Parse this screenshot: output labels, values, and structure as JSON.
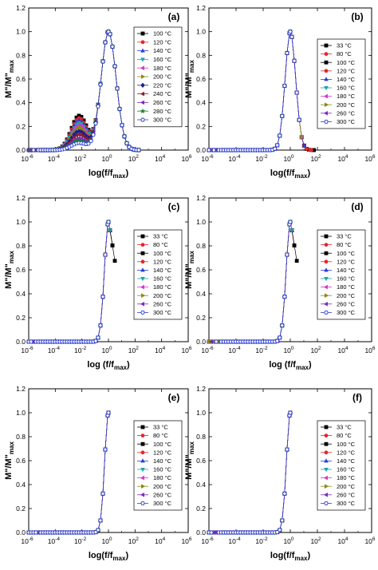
{
  "figure": {
    "panel_label_format": "({id})",
    "axis_font": "bold",
    "frame_color": "#000000"
  },
  "series_styles": {
    "100 °C": {
      "color": "#000000",
      "marker": "square"
    },
    "120 °C": {
      "color": "#e8242a",
      "marker": "circle"
    },
    "140 °C": {
      "color": "#2a3fd6",
      "marker": "triangle-up"
    },
    "160 °C": {
      "color": "#19a6a6",
      "marker": "triangle-down"
    },
    "180 °C": {
      "color": "#d636c8",
      "marker": "triangle-left"
    },
    "200 °C": {
      "color": "#8a8a12",
      "marker": "triangle-right"
    },
    "220 °C": {
      "color": "#1c1c8f",
      "marker": "diamond"
    },
    "240 °C": {
      "color": "#8b1a2b",
      "marker": "triangle-left"
    },
    "260 °C": {
      "color": "#7b2cbf",
      "marker": "triangle-left"
    },
    "280 °C": {
      "color": "#1e7f3a",
      "marker": "star"
    },
    "300 °C": {
      "color": "#2c3fd0",
      "marker": "hex-open"
    },
    "33 °C": {
      "color": "#000000",
      "marker": "square"
    },
    "80 °C": {
      "color": "#e8242a",
      "marker": "circle"
    }
  },
  "chart_data": [
    {
      "id": "a",
      "type": "scatter",
      "panel_label": "(a)",
      "xlabel": "log(f/f",
      "xlabel_sub": "max",
      "xlabel_end": ")",
      "ylabel": "M\"/M\"",
      "ylabel_sub": "max",
      "xscale": "log",
      "xlim": [
        1e-06,
        1000000.0
      ],
      "ylim": [
        0,
        1.2
      ],
      "x_ticks": [
        {
          "v": -6,
          "label": "10"
        },
        {
          "v": -4,
          "label": "10"
        },
        {
          "v": -2,
          "label": "10"
        },
        {
          "v": 0,
          "label": "10"
        },
        {
          "v": 2,
          "label": "10"
        },
        {
          "v": 4,
          "label": "10"
        },
        {
          "v": 6,
          "label": "10"
        }
      ],
      "x_tick_exps": [
        "-6",
        "-4",
        "-2",
        "0",
        "2",
        "4",
        "6"
      ],
      "y_ticks": [
        0.0,
        0.2,
        0.4,
        0.6,
        0.8,
        1.0,
        1.2
      ],
      "y_tick_labels": [
        "0.0",
        "0.2",
        "0.4",
        "0.6",
        "0.8",
        "1.0",
        "1.2"
      ],
      "legend_position": "top-right",
      "legend": [
        "100 °C",
        "120 °C",
        "140 °C",
        "160 °C",
        "180 °C",
        "200 °C",
        "220 °C",
        "240 °C",
        "260 °C",
        "280 °C",
        "300 °C"
      ],
      "peak_width": 0.55,
      "left_floor": 0,
      "right_end": 2.3,
      "shoulder": {
        "center": -2.2,
        "width": 0.6,
        "height": [
          0.29,
          0.27,
          0.25,
          0.23,
          0.21,
          0.19,
          0.16,
          0.13,
          0.1,
          0.08,
          0.06
        ]
      },
      "grid": false
    },
    {
      "id": "b",
      "type": "scatter",
      "panel_label": "(b)",
      "xlabel": "log(f/f",
      "xlabel_sub": "max",
      "xlabel_end": ")",
      "ylabel": "M\"/M\"",
      "ylabel_sub": "max",
      "xscale": "log",
      "xlim": [
        1e-06,
        1000000.0
      ],
      "ylim": [
        0,
        1.2
      ],
      "x_tick_exps": [
        "-6",
        "-4",
        "-2",
        "0",
        "2",
        "4",
        "6"
      ],
      "y_ticks": [
        0.0,
        0.2,
        0.4,
        0.6,
        0.8,
        1.0,
        1.2
      ],
      "y_tick_labels": [
        "0.0",
        "0.2",
        "0.4",
        "0.6",
        "0.8",
        "1.0",
        "1.2"
      ],
      "legend_position": "right",
      "legend": [
        "33 °C",
        "80 °C",
        "100 °C",
        "120 °C",
        "140 °C",
        "160 °C",
        "180 °C",
        "200 °C",
        "260 °C",
        "300 °C"
      ],
      "peak_width": 0.38,
      "right_ends": [
        1.9,
        1.7,
        1.3,
        1.2,
        1.1,
        1.0,
        0.9,
        0.9,
        0.8,
        0.8
      ],
      "grid": false
    },
    {
      "id": "c",
      "type": "scatter",
      "panel_label": "(c)",
      "xlabel": "log (f/f",
      "xlabel_sub": "max",
      "xlabel_end": ")",
      "ylabel": "M\"/M\"",
      "ylabel_sub": "max",
      "xscale": "log",
      "xlim": [
        1e-06,
        1000000.0
      ],
      "ylim": [
        0,
        1.2
      ],
      "x_tick_exps": [
        "-6",
        "-4",
        "-2",
        "0",
        "2",
        "4",
        "6"
      ],
      "y_ticks": [
        0.0,
        0.2,
        0.4,
        0.6,
        0.8,
        1.0,
        1.2
      ],
      "y_tick_labels": [
        "0.0",
        "0.2",
        "0.4",
        "0.6",
        "0.8",
        "1.0",
        "1.2"
      ],
      "legend_position": "right",
      "legend": [
        "33 °C",
        "80 °C",
        "100 °C",
        "120 °C",
        "140 °C",
        "160 °C",
        "180 °C",
        "200 °C",
        "260 °C",
        "300 °C"
      ],
      "peak_width": 0.3,
      "right_ends": [
        0.6,
        0.4,
        0.3,
        0.25,
        0.2,
        0.15,
        0.1,
        0.1,
        0.05,
        0.05
      ],
      "right_floor": 0.6,
      "grid": false
    },
    {
      "id": "d",
      "type": "scatter",
      "panel_label": "(d)",
      "xlabel": "log (f/f",
      "xlabel_sub": "max",
      "xlabel_end": ")",
      "ylabel": "M\"/M\"",
      "ylabel_sub": "max",
      "xscale": "log",
      "xlim": [
        1e-06,
        1000000.0
      ],
      "ylim": [
        0,
        1.2
      ],
      "x_tick_exps": [
        "-6",
        "-4",
        "-2",
        "0",
        "2",
        "4",
        "6"
      ],
      "y_ticks": [
        0.0,
        0.2,
        0.4,
        0.6,
        0.8,
        1.0,
        1.2
      ],
      "y_tick_labels": [
        "0.0",
        "0.2",
        "0.4",
        "0.6",
        "0.8",
        "1.0",
        "1.2"
      ],
      "legend_position": "right",
      "legend": [
        "33 °C",
        "80 °C",
        "100 °C",
        "120 °C",
        "140 °C",
        "160 °C",
        "180 °C",
        "200 °C",
        "260 °C",
        "300 °C"
      ],
      "peak_width": 0.3,
      "right_ends": [
        0.6,
        0.4,
        0.3,
        0.25,
        0.2,
        0.15,
        0.1,
        0.1,
        0.05,
        0.05
      ],
      "right_floor": 0.6,
      "grid": false
    },
    {
      "id": "e",
      "type": "scatter",
      "panel_label": "(e)",
      "xlabel": "log(f/f",
      "xlabel_sub": "max",
      "xlabel_end": ")",
      "ylabel": "M\"/M\"",
      "ylabel_sub": "max",
      "xscale": "log",
      "xlim": [
        1e-06,
        1000000.0
      ],
      "ylim": [
        0,
        1.2
      ],
      "x_tick_exps": [
        "-6",
        "-4",
        "-2",
        "0",
        "2",
        "4",
        "6"
      ],
      "y_ticks": [
        0.0,
        0.2,
        0.4,
        0.6,
        0.8,
        1.0,
        1.2
      ],
      "y_tick_labels": [
        "0.0",
        "0.2",
        "0.4",
        "0.6",
        "0.8",
        "1.0",
        "1.2"
      ],
      "legend_position": "right",
      "legend": [
        "33 °C",
        "80 °C",
        "100 °C",
        "120 °C",
        "140 °C",
        "160 °C",
        "180 °C",
        "200 °C",
        "260 °C",
        "300 °C"
      ],
      "peak_width": 0.28,
      "right_ends": [
        0,
        0,
        0,
        0,
        0,
        0,
        0,
        0,
        0,
        0
      ],
      "grid": false
    },
    {
      "id": "f",
      "type": "scatter",
      "panel_label": "(f)",
      "xlabel": "log(f/f",
      "xlabel_sub": "max",
      "xlabel_end": ")",
      "ylabel": "M\"/M\"",
      "ylabel_sub": "max",
      "xscale": "log",
      "xlim": [
        1e-06,
        1000000.0
      ],
      "ylim": [
        0,
        1.2
      ],
      "x_tick_exps": [
        "-6",
        "-4",
        "-2",
        "0",
        "2",
        "4",
        "6"
      ],
      "y_ticks": [
        0.0,
        0.2,
        0.4,
        0.6,
        0.8,
        1.0,
        1.2
      ],
      "y_tick_labels": [
        "0.0",
        "0.2",
        "0.4",
        "0.6",
        "0.8",
        "1.0",
        "1.2"
      ],
      "legend_position": "right",
      "legend": [
        "33 °C",
        "80 °C",
        "100 °C",
        "120 °C",
        "140 °C",
        "160 °C",
        "180 °C",
        "200 °C",
        "260 °C",
        "300 °C"
      ],
      "peak_width": 0.28,
      "right_ends": [
        0,
        0,
        0,
        0,
        0,
        0,
        0,
        0,
        0,
        0
      ],
      "grid": false
    }
  ]
}
